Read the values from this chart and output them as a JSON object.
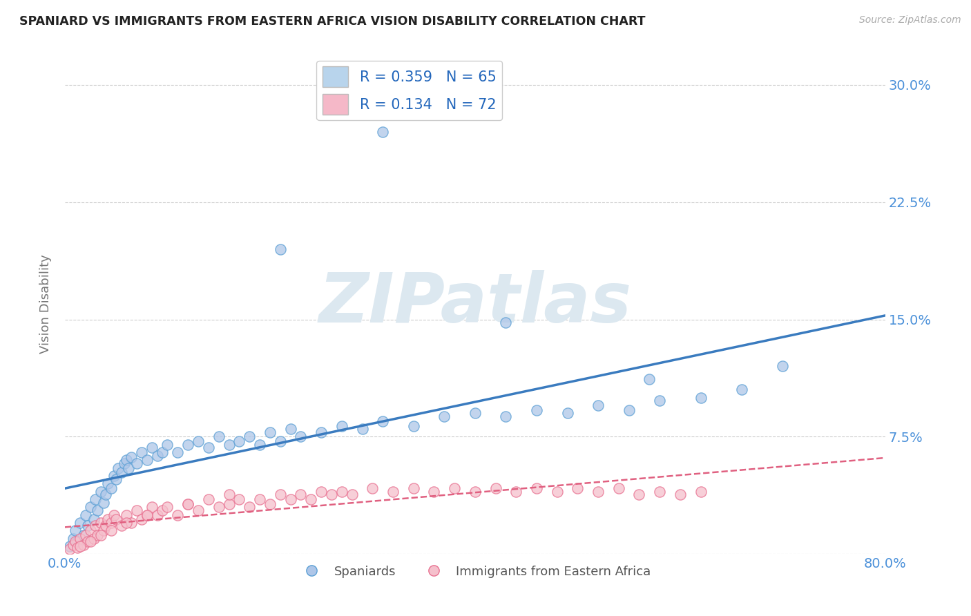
{
  "title": "SPANIARD VS IMMIGRANTS FROM EASTERN AFRICA VISION DISABILITY CORRELATION CHART",
  "source": "Source: ZipAtlas.com",
  "xlabel": "",
  "ylabel": "Vision Disability",
  "xlim": [
    0.0,
    0.8
  ],
  "ylim": [
    0.0,
    0.32
  ],
  "xticks": [
    0.0,
    0.2,
    0.4,
    0.6,
    0.8
  ],
  "xtick_labels_show": [
    "0.0%",
    "80.0%"
  ],
  "yticks": [
    0.0,
    0.075,
    0.15,
    0.225,
    0.3
  ],
  "ytick_labels": [
    "",
    "7.5%",
    "15.0%",
    "22.5%",
    "30.0%"
  ],
  "blue_fill_color": "#aec6e8",
  "blue_edge_color": "#5a9fd4",
  "pink_fill_color": "#f5c0cc",
  "pink_edge_color": "#e87090",
  "blue_line_color": "#3a7bbf",
  "pink_line_color": "#e06080",
  "legend_box_blue": "#b8d4ec",
  "legend_box_pink": "#f5b8c8",
  "R_blue": 0.359,
  "N_blue": 65,
  "R_pink": 0.134,
  "N_pink": 72,
  "watermark": "ZIPatlas",
  "legend_label_blue": "Spaniards",
  "legend_label_pink": "Immigrants from Eastern Africa",
  "blue_scatter_x": [
    0.005,
    0.008,
    0.01,
    0.012,
    0.015,
    0.018,
    0.02,
    0.022,
    0.025,
    0.028,
    0.03,
    0.032,
    0.035,
    0.038,
    0.04,
    0.042,
    0.045,
    0.048,
    0.05,
    0.052,
    0.055,
    0.058,
    0.06,
    0.062,
    0.065,
    0.07,
    0.075,
    0.08,
    0.085,
    0.09,
    0.095,
    0.1,
    0.11,
    0.12,
    0.13,
    0.14,
    0.15,
    0.16,
    0.17,
    0.18,
    0.19,
    0.2,
    0.21,
    0.22,
    0.23,
    0.25,
    0.27,
    0.29,
    0.31,
    0.34,
    0.37,
    0.4,
    0.43,
    0.46,
    0.49,
    0.52,
    0.55,
    0.58,
    0.62,
    0.66,
    0.7,
    0.31,
    0.21,
    0.43,
    0.57
  ],
  "blue_scatter_y": [
    0.005,
    0.01,
    0.015,
    0.008,
    0.02,
    0.012,
    0.025,
    0.018,
    0.03,
    0.022,
    0.035,
    0.028,
    0.04,
    0.033,
    0.038,
    0.045,
    0.042,
    0.05,
    0.048,
    0.055,
    0.052,
    0.058,
    0.06,
    0.055,
    0.062,
    0.058,
    0.065,
    0.06,
    0.068,
    0.063,
    0.065,
    0.07,
    0.065,
    0.07,
    0.072,
    0.068,
    0.075,
    0.07,
    0.072,
    0.075,
    0.07,
    0.078,
    0.072,
    0.08,
    0.075,
    0.078,
    0.082,
    0.08,
    0.085,
    0.082,
    0.088,
    0.09,
    0.088,
    0.092,
    0.09,
    0.095,
    0.092,
    0.098,
    0.1,
    0.105,
    0.12,
    0.27,
    0.195,
    0.148,
    0.112
  ],
  "pink_scatter_x": [
    0.005,
    0.008,
    0.01,
    0.012,
    0.015,
    0.018,
    0.02,
    0.022,
    0.025,
    0.028,
    0.03,
    0.032,
    0.035,
    0.038,
    0.04,
    0.042,
    0.045,
    0.048,
    0.05,
    0.055,
    0.06,
    0.065,
    0.07,
    0.075,
    0.08,
    0.085,
    0.09,
    0.095,
    0.1,
    0.11,
    0.12,
    0.13,
    0.14,
    0.15,
    0.16,
    0.17,
    0.18,
    0.19,
    0.2,
    0.21,
    0.22,
    0.23,
    0.24,
    0.25,
    0.26,
    0.27,
    0.28,
    0.3,
    0.32,
    0.34,
    0.36,
    0.38,
    0.4,
    0.42,
    0.44,
    0.46,
    0.48,
    0.5,
    0.52,
    0.54,
    0.56,
    0.58,
    0.6,
    0.62,
    0.015,
    0.025,
    0.035,
    0.045,
    0.06,
    0.08,
    0.12,
    0.16
  ],
  "pink_scatter_y": [
    0.003,
    0.006,
    0.008,
    0.004,
    0.01,
    0.006,
    0.012,
    0.008,
    0.015,
    0.01,
    0.018,
    0.012,
    0.02,
    0.015,
    0.018,
    0.022,
    0.02,
    0.025,
    0.022,
    0.018,
    0.025,
    0.02,
    0.028,
    0.022,
    0.025,
    0.03,
    0.025,
    0.028,
    0.03,
    0.025,
    0.032,
    0.028,
    0.035,
    0.03,
    0.032,
    0.035,
    0.03,
    0.035,
    0.032,
    0.038,
    0.035,
    0.038,
    0.035,
    0.04,
    0.038,
    0.04,
    0.038,
    0.042,
    0.04,
    0.042,
    0.04,
    0.042,
    0.04,
    0.042,
    0.04,
    0.042,
    0.04,
    0.042,
    0.04,
    0.042,
    0.038,
    0.04,
    0.038,
    0.04,
    0.005,
    0.008,
    0.012,
    0.015,
    0.02,
    0.025,
    0.032,
    0.038
  ],
  "grid_color": "#cccccc",
  "bg_color": "#ffffff",
  "title_color": "#222222",
  "axis_label_color": "#777777",
  "tick_label_color": "#4a90d9",
  "watermark_color": "#dce8f0",
  "watermark_fontsize": 72
}
